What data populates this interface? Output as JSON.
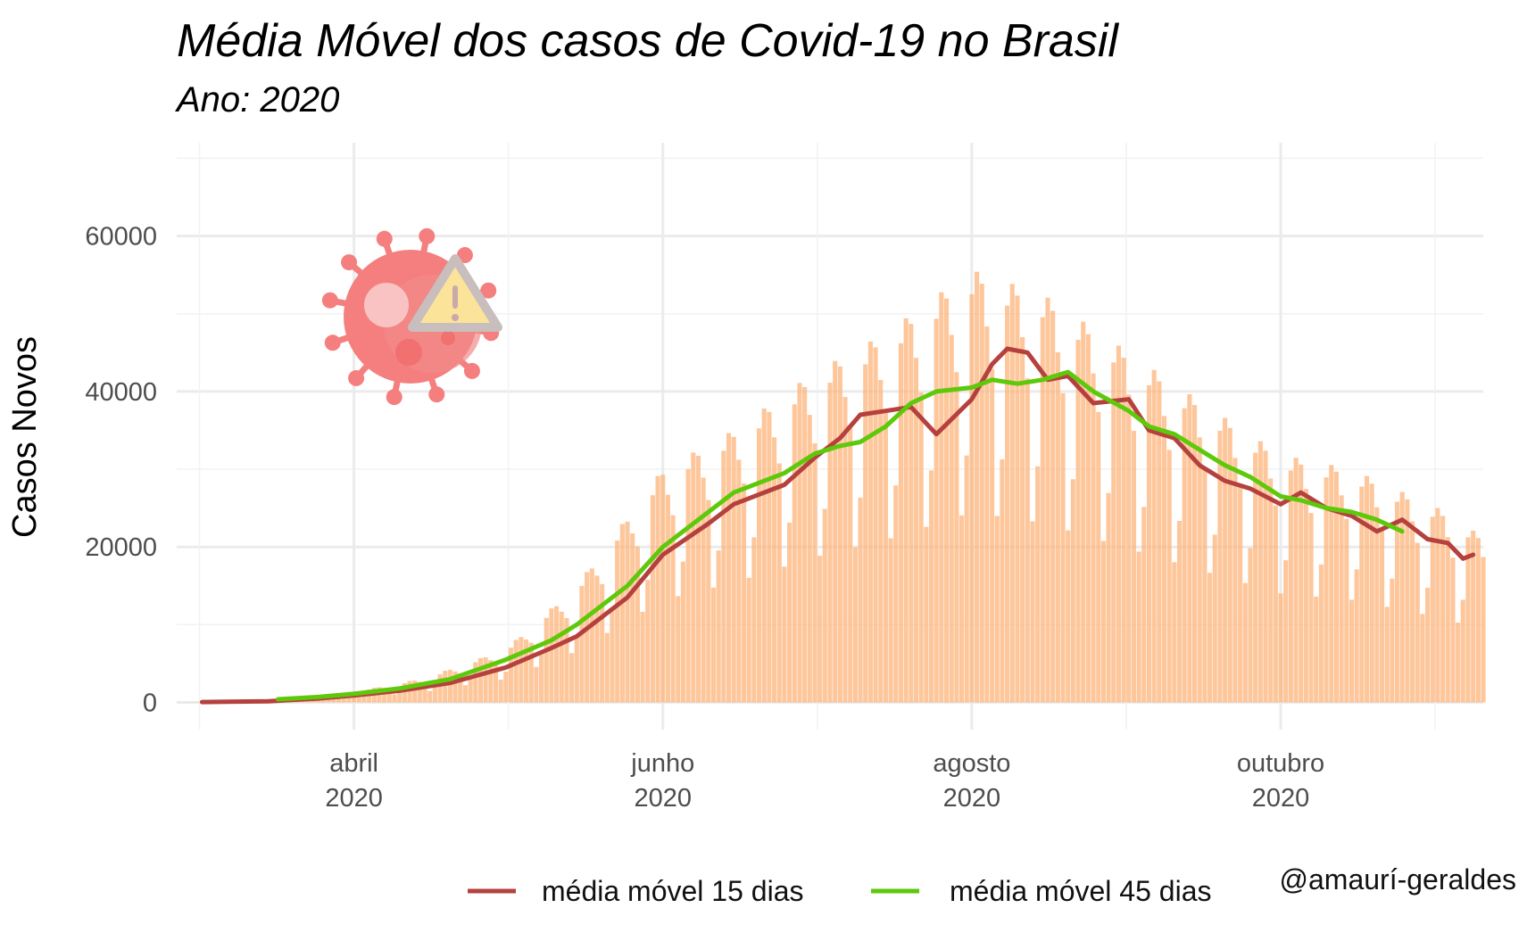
{
  "chart_data": {
    "type": "bar",
    "title": "Média Móvel dos casos de Covid-19 no Brasil",
    "subtitle": "Ano: 2020",
    "ylabel": "Casos Novos",
    "xlabel": "",
    "ylim": [
      -3500,
      72000
    ],
    "x_start": "2020-02-26",
    "x_end": "2020-11-10",
    "yticks": [
      0,
      20000,
      40000,
      60000
    ],
    "ytick_labels": [
      "0",
      "20000",
      "40000",
      "60000"
    ],
    "xticks": [
      {
        "date": "2020-04-01",
        "month": "abril",
        "year": "2020"
      },
      {
        "date": "2020-06-01",
        "month": "junho",
        "year": "2020"
      },
      {
        "date": "2020-08-01",
        "month": "agosto",
        "year": "2020"
      },
      {
        "date": "2020-10-01",
        "month": "outubro",
        "year": "2020"
      }
    ],
    "grid": true,
    "legend_position": "bottom",
    "bars": {
      "name": "Casos Novos",
      "color": "#FDB37A",
      "keypoints": [
        [
          "2020-02-26",
          0
        ],
        [
          "2020-03-10",
          100
        ],
        [
          "2020-03-20",
          300
        ],
        [
          "2020-04-01",
          1100
        ],
        [
          "2020-04-15",
          2500
        ],
        [
          "2020-05-01",
          5500
        ],
        [
          "2020-05-15",
          12000
        ],
        [
          "2020-06-01",
          24000
        ],
        [
          "2020-06-15",
          28000
        ],
        [
          "2020-07-01",
          34000
        ],
        [
          "2020-07-15",
          38000
        ],
        [
          "2020-08-01",
          44500
        ],
        [
          "2020-08-15",
          42000
        ],
        [
          "2020-09-01",
          36000
        ],
        [
          "2020-09-15",
          31000
        ],
        [
          "2020-10-01",
          25500
        ],
        [
          "2020-10-15",
          24000
        ],
        [
          "2020-11-01",
          20000
        ],
        [
          "2020-11-10",
          17000
        ]
      ]
    },
    "series": [
      {
        "name": "média móvel 15 dias",
        "color": "#B5413E",
        "points": [
          [
            "2020-03-02",
            50
          ],
          [
            "2020-03-15",
            150
          ],
          [
            "2020-03-25",
            500
          ],
          [
            "2020-04-01",
            900
          ],
          [
            "2020-04-10",
            1500
          ],
          [
            "2020-04-20",
            2500
          ],
          [
            "2020-05-01",
            4500
          ],
          [
            "2020-05-10",
            7000
          ],
          [
            "2020-05-15",
            8500
          ],
          [
            "2020-05-25",
            13500
          ],
          [
            "2020-06-01",
            19000
          ],
          [
            "2020-06-10",
            23000
          ],
          [
            "2020-06-15",
            25500
          ],
          [
            "2020-06-25",
            28000
          ],
          [
            "2020-07-01",
            31500
          ],
          [
            "2020-07-06",
            34000
          ],
          [
            "2020-07-10",
            37000
          ],
          [
            "2020-07-15",
            37500
          ],
          [
            "2020-07-20",
            38000
          ],
          [
            "2020-07-25",
            34500
          ],
          [
            "2020-08-01",
            39000
          ],
          [
            "2020-08-05",
            43500
          ],
          [
            "2020-08-08",
            45500
          ],
          [
            "2020-08-12",
            45000
          ],
          [
            "2020-08-16",
            41500
          ],
          [
            "2020-08-20",
            42000
          ],
          [
            "2020-08-25",
            38500
          ],
          [
            "2020-09-01",
            39000
          ],
          [
            "2020-09-05",
            35000
          ],
          [
            "2020-09-10",
            34000
          ],
          [
            "2020-09-15",
            30500
          ],
          [
            "2020-09-20",
            28500
          ],
          [
            "2020-09-25",
            27500
          ],
          [
            "2020-10-01",
            25500
          ],
          [
            "2020-10-05",
            27000
          ],
          [
            "2020-10-10",
            25000
          ],
          [
            "2020-10-15",
            24000
          ],
          [
            "2020-10-20",
            22000
          ],
          [
            "2020-10-25",
            23500
          ],
          [
            "2020-10-30",
            21000
          ],
          [
            "2020-11-03",
            20500
          ],
          [
            "2020-11-06",
            18500
          ],
          [
            "2020-11-08",
            19000
          ]
        ]
      },
      {
        "name": "média móvel 45 dias",
        "color": "#5DC90A",
        "points": [
          [
            "2020-03-17",
            400
          ],
          [
            "2020-03-25",
            700
          ],
          [
            "2020-04-01",
            1100
          ],
          [
            "2020-04-10",
            1800
          ],
          [
            "2020-04-20",
            3000
          ],
          [
            "2020-05-01",
            5500
          ],
          [
            "2020-05-10",
            8000
          ],
          [
            "2020-05-15",
            10000
          ],
          [
            "2020-05-25",
            15000
          ],
          [
            "2020-06-01",
            20000
          ],
          [
            "2020-06-10",
            24500
          ],
          [
            "2020-06-15",
            27000
          ],
          [
            "2020-06-25",
            29500
          ],
          [
            "2020-07-01",
            32000
          ],
          [
            "2020-07-06",
            33000
          ],
          [
            "2020-07-10",
            33500
          ],
          [
            "2020-07-15",
            35500
          ],
          [
            "2020-07-20",
            38500
          ],
          [
            "2020-07-25",
            40000
          ],
          [
            "2020-08-01",
            40500
          ],
          [
            "2020-08-05",
            41500
          ],
          [
            "2020-08-10",
            41000
          ],
          [
            "2020-08-15",
            41500
          ],
          [
            "2020-08-20",
            42500
          ],
          [
            "2020-08-25",
            40000
          ],
          [
            "2020-09-01",
            37500
          ],
          [
            "2020-09-05",
            35500
          ],
          [
            "2020-09-10",
            34500
          ],
          [
            "2020-09-15",
            32500
          ],
          [
            "2020-09-20",
            30500
          ],
          [
            "2020-09-25",
            29000
          ],
          [
            "2020-10-01",
            26500
          ],
          [
            "2020-10-05",
            26000
          ],
          [
            "2020-10-10",
            25000
          ],
          [
            "2020-10-15",
            24500
          ],
          [
            "2020-10-20",
            23500
          ],
          [
            "2020-10-25",
            22000
          ]
        ]
      }
    ]
  },
  "icon": {
    "name": "virus-warning-icon",
    "virus_color": "#F47F7E",
    "warning_color": "#FBE39A"
  },
  "credit": "@amaurí-geraldes"
}
